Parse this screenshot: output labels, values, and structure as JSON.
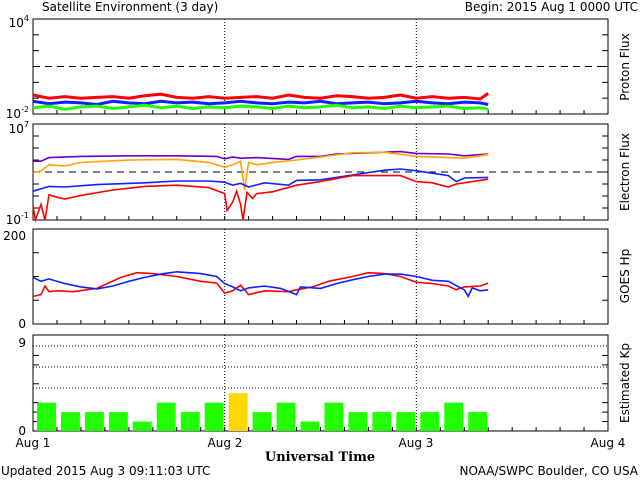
{
  "header": {
    "title": "Satellite Environment (3 day)",
    "begin": "Begin:  2015 Aug 1 0000 UTC"
  },
  "footer": {
    "updated": "Updated 2015 Aug  3 09:11:03 UTC",
    "source": "NOAA/SWPC Boulder, CO USA"
  },
  "colors": {
    "red": "#ff0000",
    "blue": "#1020ff",
    "green": "#22ff00",
    "orange": "#ffa500",
    "purple": "#6a00cc",
    "kp_normal": "#22ff00",
    "kp_storm": "#ffd700"
  },
  "chart_data": [
    {
      "type": "line",
      "name": "proton-flux",
      "ylabel": "Proton Flux",
      "yscale": "log",
      "ylim_exp": [
        -2,
        4
      ],
      "ytick_labels": [
        {
          "base": "10",
          "exp": "4"
        },
        {
          "base": "10",
          "exp": "-2"
        }
      ],
      "threshold_exp": 1,
      "x_hours": [
        0,
        2,
        4,
        6,
        8,
        10,
        12,
        14,
        16,
        18,
        20,
        22,
        24,
        26,
        28,
        30,
        32,
        34,
        36,
        38,
        40,
        42,
        44,
        46,
        48,
        50,
        52,
        54,
        56,
        57
      ],
      "series": [
        {
          "name": "red",
          "log_values": [
            -0.8,
            -1.0,
            -0.9,
            -1.0,
            -0.95,
            -0.9,
            -1.0,
            -0.85,
            -0.75,
            -0.95,
            -1.0,
            -0.9,
            -1.0,
            -0.95,
            -0.9,
            -1.0,
            -0.8,
            -0.95,
            -1.0,
            -0.85,
            -0.9,
            -1.0,
            -0.95,
            -0.8,
            -1.0,
            -0.9,
            -1.0,
            -0.95,
            -1.05,
            -0.7
          ]
        },
        {
          "name": "blue",
          "log_values": [
            -1.2,
            -1.35,
            -1.25,
            -1.3,
            -1.4,
            -1.2,
            -1.3,
            -1.35,
            -1.2,
            -1.3,
            -1.25,
            -1.35,
            -1.3,
            -1.2,
            -1.3,
            -1.35,
            -1.25,
            -1.3,
            -1.2,
            -1.35,
            -1.3,
            -1.25,
            -1.35,
            -1.3,
            -1.2,
            -1.3,
            -1.35,
            -1.25,
            -1.3,
            -1.4
          ]
        },
        {
          "name": "green",
          "log_values": [
            -1.6,
            -1.5,
            -1.7,
            -1.55,
            -1.5,
            -1.65,
            -1.55,
            -1.45,
            -1.6,
            -1.5,
            -1.65,
            -1.55,
            -1.6,
            -1.5,
            -1.55,
            -1.65,
            -1.5,
            -1.6,
            -1.55,
            -1.45,
            -1.6,
            -1.55,
            -1.65,
            -1.5,
            -1.6,
            -1.55,
            -1.5,
            -1.65,
            -1.6,
            -1.7
          ]
        }
      ]
    },
    {
      "type": "line",
      "name": "electron-flux",
      "ylabel": "Electron Flux",
      "yscale": "log",
      "ylim_exp": [
        -1,
        7
      ],
      "ytick_labels": [
        {
          "base": "10",
          "exp": "7"
        },
        {
          "base": "10",
          "exp": "-1"
        }
      ],
      "threshold_exp": 3,
      "series": [
        {
          "name": "purple",
          "points": [
            [
              0,
              3.9
            ],
            [
              1,
              3.9
            ],
            [
              2,
              4.2
            ],
            [
              6,
              4.3
            ],
            [
              12,
              4.35
            ],
            [
              18,
              4.35
            ],
            [
              23,
              4.3
            ],
            [
              24,
              4.1
            ],
            [
              25,
              4.25
            ],
            [
              26,
              4.15
            ],
            [
              28,
              4.2
            ],
            [
              32,
              4.05
            ],
            [
              33,
              4.3
            ],
            [
              36,
              4.3
            ],
            [
              38,
              4.5
            ],
            [
              42,
              4.6
            ],
            [
              46,
              4.7
            ],
            [
              48,
              4.55
            ],
            [
              52,
              4.5
            ],
            [
              54,
              4.35
            ],
            [
              57,
              4.5
            ]
          ]
        },
        {
          "name": "orange",
          "points": [
            [
              0,
              2.9
            ],
            [
              1,
              3.1
            ],
            [
              2,
              3.6
            ],
            [
              4,
              3.5
            ],
            [
              6,
              3.8
            ],
            [
              12,
              4.0
            ],
            [
              18,
              4.05
            ],
            [
              22,
              3.8
            ],
            [
              24,
              3.4
            ],
            [
              25,
              3.6
            ],
            [
              26,
              3.9
            ],
            [
              26.5,
              1.5
            ],
            [
              27,
              3.8
            ],
            [
              28,
              3.6
            ],
            [
              30,
              3.8
            ],
            [
              33,
              4.0
            ],
            [
              36,
              4.25
            ],
            [
              40,
              4.6
            ],
            [
              44,
              4.65
            ],
            [
              48,
              4.3
            ],
            [
              52,
              4.2
            ],
            [
              54,
              4.15
            ],
            [
              57,
              4.45
            ]
          ]
        },
        {
          "name": "blue",
          "points": [
            [
              0,
              1.4
            ],
            [
              2,
              1.8
            ],
            [
              4,
              1.75
            ],
            [
              8,
              1.95
            ],
            [
              14,
              2.1
            ],
            [
              18,
              2.25
            ],
            [
              22,
              2.25
            ],
            [
              24,
              2.15
            ],
            [
              25,
              1.9
            ],
            [
              26,
              2.05
            ],
            [
              27,
              1.75
            ],
            [
              29,
              2.1
            ],
            [
              32,
              1.9
            ],
            [
              33,
              2.3
            ],
            [
              36,
              2.35
            ],
            [
              40,
              2.75
            ],
            [
              44,
              3.15
            ],
            [
              46,
              3.25
            ],
            [
              48,
              3.1
            ],
            [
              50,
              2.9
            ],
            [
              52,
              2.7
            ],
            [
              53,
              2.2
            ],
            [
              54,
              2.5
            ],
            [
              57,
              2.55
            ]
          ]
        },
        {
          "name": "red",
          "points": [
            [
              0,
              0.2
            ],
            [
              0.3,
              -1
            ],
            [
              1,
              0.3
            ],
            [
              1.5,
              -1
            ],
            [
              2,
              1.1
            ],
            [
              3,
              0.9
            ],
            [
              4,
              0.75
            ],
            [
              6,
              1.05
            ],
            [
              10,
              1.5
            ],
            [
              14,
              1.8
            ],
            [
              18,
              1.9
            ],
            [
              22,
              1.7
            ],
            [
              24,
              1.2
            ],
            [
              24.3,
              -0.2
            ],
            [
              25,
              0.5
            ],
            [
              25.5,
              1.4
            ],
            [
              26,
              0.3
            ],
            [
              26.3,
              -1
            ],
            [
              26.8,
              1.3
            ],
            [
              27.5,
              0.8
            ],
            [
              28,
              1.2
            ],
            [
              30,
              1.35
            ],
            [
              33,
              1.9
            ],
            [
              36,
              2.2
            ],
            [
              40,
              2.7
            ],
            [
              46,
              2.7
            ],
            [
              48,
              2.2
            ],
            [
              50,
              2.1
            ],
            [
              52,
              1.75
            ],
            [
              53,
              2.0
            ],
            [
              55,
              2.2
            ],
            [
              57,
              2.4
            ]
          ]
        }
      ]
    },
    {
      "type": "line",
      "name": "goes-hp",
      "ylabel": "GOES Hp",
      "ylim": [
        0,
        200
      ],
      "ytick_labels": [
        "200",
        "0"
      ],
      "series": [
        {
          "name": "red",
          "points": [
            [
              0,
              58
            ],
            [
              1,
              62
            ],
            [
              1.5,
              80
            ],
            [
              2,
              68
            ],
            [
              3,
              70
            ],
            [
              5,
              68
            ],
            [
              8,
              75
            ],
            [
              11,
              98
            ],
            [
              13,
              108
            ],
            [
              15,
              106
            ],
            [
              18,
              100
            ],
            [
              21,
              90
            ],
            [
              23,
              86
            ],
            [
              24,
              65
            ],
            [
              25,
              70
            ],
            [
              26,
              82
            ],
            [
              27,
              62
            ],
            [
              29,
              70
            ],
            [
              32,
              68
            ],
            [
              33,
              72
            ],
            [
              35,
              78
            ],
            [
              37,
              90
            ],
            [
              40,
              100
            ],
            [
              42,
              108
            ],
            [
              44,
              106
            ],
            [
              46,
              100
            ],
            [
              48,
              88
            ],
            [
              50,
              85
            ],
            [
              52,
              80
            ],
            [
              53,
              72
            ],
            [
              54,
              78
            ],
            [
              56,
              80
            ],
            [
              57,
              86
            ]
          ]
        },
        {
          "name": "blue",
          "points": [
            [
              0,
              98
            ],
            [
              1,
              90
            ],
            [
              2,
              95
            ],
            [
              4,
              85
            ],
            [
              6,
              78
            ],
            [
              8,
              74
            ],
            [
              10,
              80
            ],
            [
              12,
              90
            ],
            [
              14,
              98
            ],
            [
              16,
              105
            ],
            [
              18,
              110
            ],
            [
              21,
              106
            ],
            [
              23,
              100
            ],
            [
              24,
              85
            ],
            [
              25,
              78
            ],
            [
              26,
              70
            ],
            [
              27,
              76
            ],
            [
              29,
              80
            ],
            [
              31,
              75
            ],
            [
              33,
              62
            ],
            [
              33.5,
              78
            ],
            [
              36,
              75
            ],
            [
              38,
              85
            ],
            [
              40,
              93
            ],
            [
              42,
              100
            ],
            [
              44,
              105
            ],
            [
              46,
              105
            ],
            [
              48,
              100
            ],
            [
              50,
              92
            ],
            [
              52,
              90
            ],
            [
              54,
              72
            ],
            [
              54.5,
              58
            ],
            [
              55,
              76
            ],
            [
              56,
              70
            ],
            [
              57,
              72
            ]
          ]
        }
      ]
    },
    {
      "type": "bar",
      "name": "estimated-kp",
      "ylabel": "Estimated Kp",
      "ylim": [
        0,
        9
      ],
      "ytick_labels": [
        "9",
        "0"
      ],
      "bar_hours": 3,
      "values": [
        3,
        2,
        2,
        2,
        1,
        3,
        2,
        3,
        4,
        2,
        3,
        1,
        3,
        2,
        2,
        2,
        2,
        3,
        2
      ],
      "storm_threshold": 4
    }
  ],
  "xaxis": {
    "labels": [
      "Aug 1",
      "Aug 2",
      "Aug 3",
      "Aug 4"
    ],
    "title": "Universal Time",
    "range_hours": [
      0,
      72
    ]
  }
}
